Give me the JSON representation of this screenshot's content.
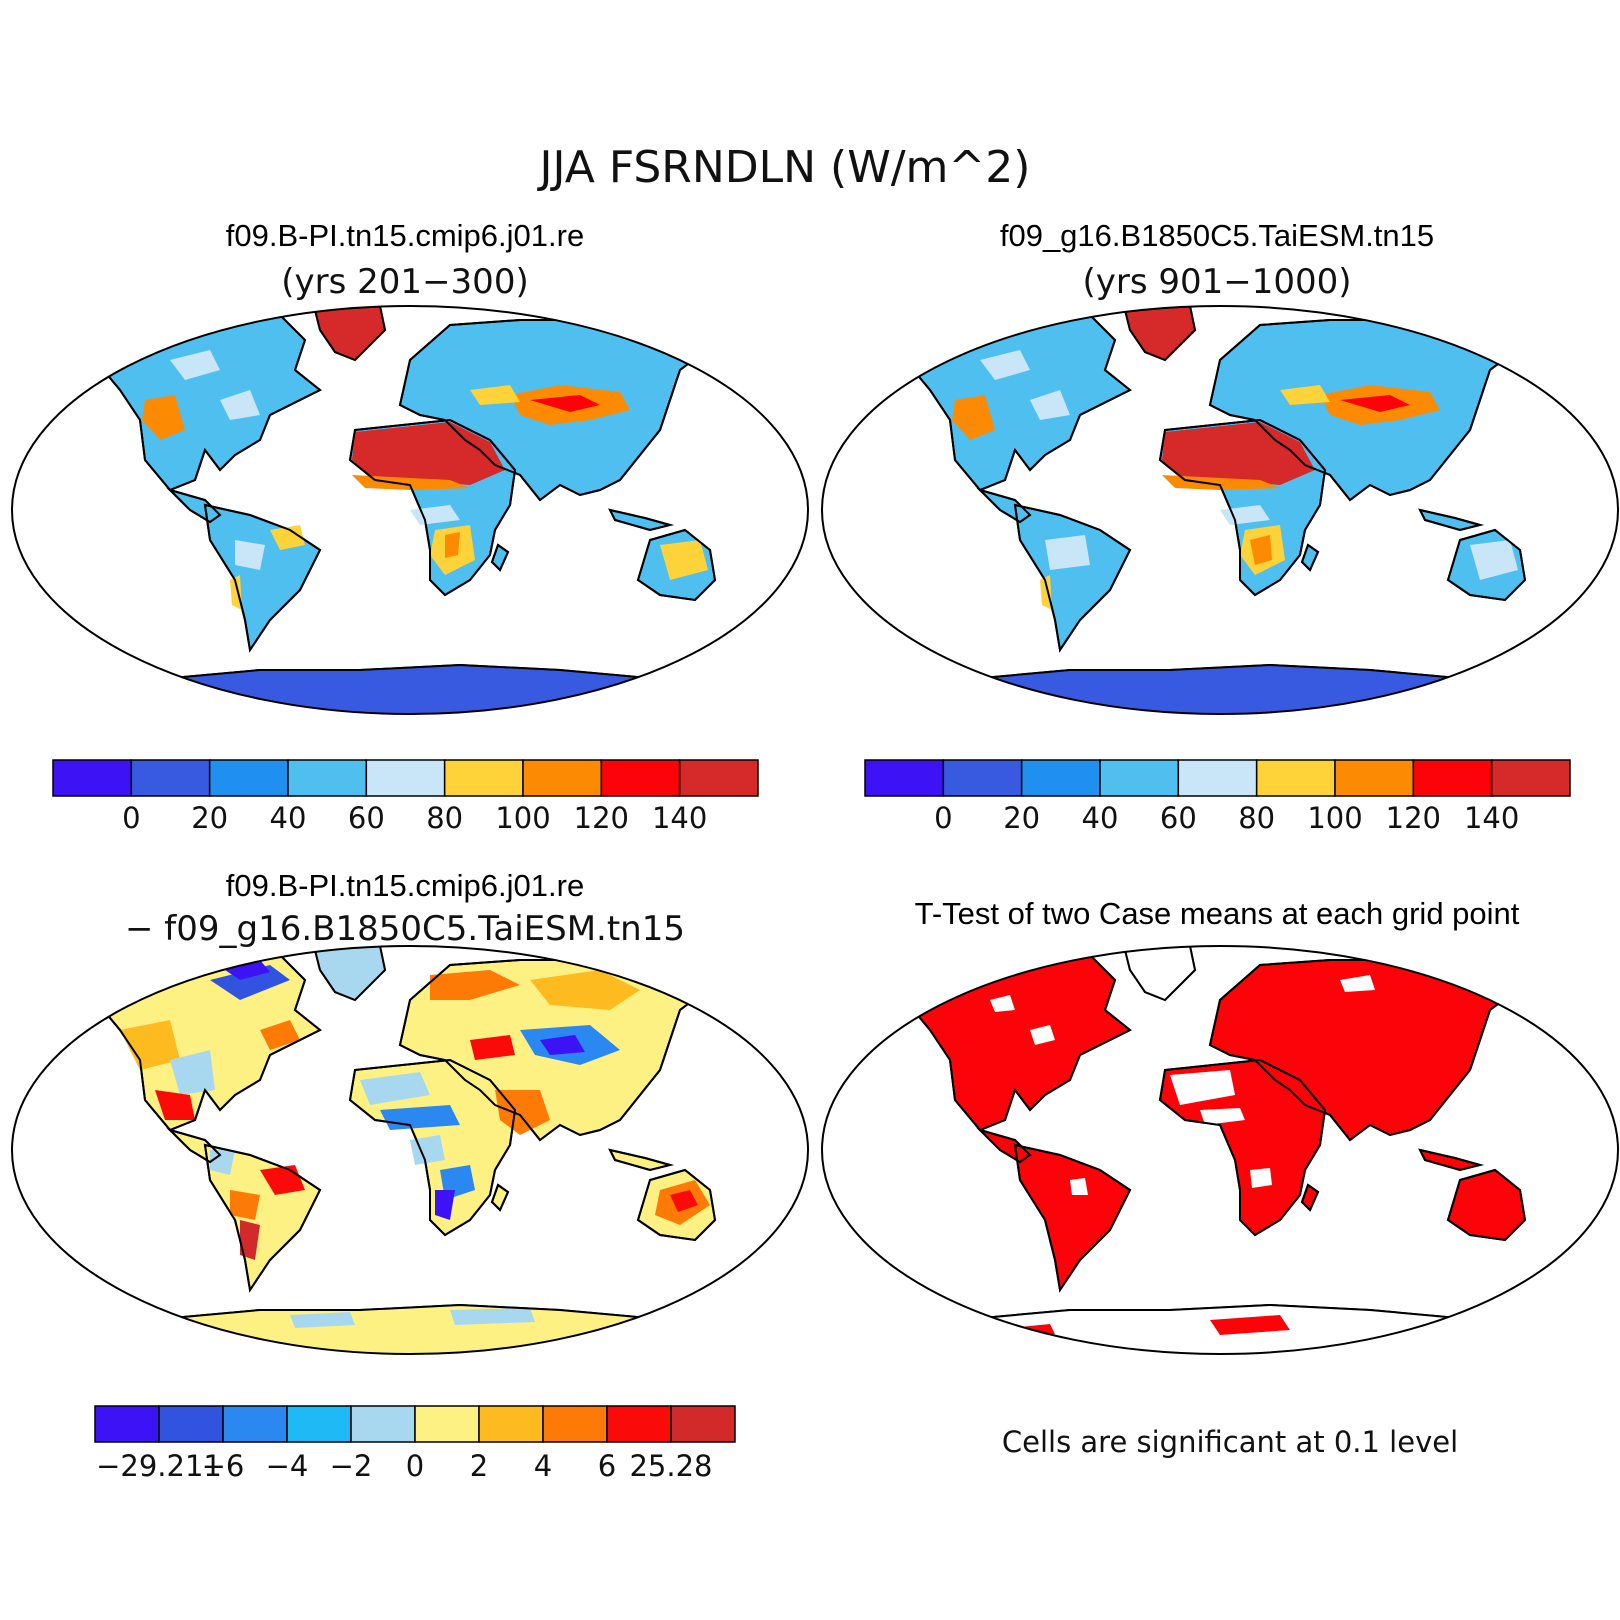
{
  "figure": {
    "title": "JJA FSRNDLN (W/m^2)"
  },
  "panels": [
    {
      "id": "case1",
      "title": "f09.B-PI.tn15.cmip6.j01.re",
      "subtitle": "(yrs 201−300)",
      "colorbar": {
        "colors": [
          "#3d13f5",
          "#385ae0",
          "#1f8ff0",
          "#4fbff0",
          "#c8e6f7",
          "#fdd339",
          "#fd8a03",
          "#fb0308",
          "#d62a2a"
        ],
        "labels": [
          "0",
          "20",
          "40",
          "60",
          "80",
          "100",
          "120",
          "140"
        ]
      }
    },
    {
      "id": "case2",
      "title": "f09_g16.B1850C5.TaiESM.tn15",
      "subtitle": "(yrs 901−1000)",
      "colorbar": {
        "colors": [
          "#3d13f5",
          "#385ae0",
          "#1f8ff0",
          "#4fbff0",
          "#c8e6f7",
          "#fdd339",
          "#fd8a03",
          "#fb0308",
          "#d62a2a"
        ],
        "labels": [
          "0",
          "20",
          "40",
          "60",
          "80",
          "100",
          "120",
          "140"
        ]
      }
    },
    {
      "id": "diff",
      "title": "f09.B-PI.tn15.cmip6.j01.re",
      "subtitle": "− f09_g16.B1850C5.TaiESM.tn15",
      "colorbar": {
        "colors": [
          "#3d13f5",
          "#3252e0",
          "#2a88f0",
          "#1dbaf5",
          "#a8d8f0",
          "#fef184",
          "#fdbb1f",
          "#fd7a06",
          "#fb0a0a",
          "#d22a2a"
        ],
        "labels": [
          "−29.211",
          "−6",
          "−4",
          "−2",
          "0",
          "2",
          "4",
          "6",
          "25.28"
        ]
      }
    },
    {
      "id": "ttest",
      "title": "T-Test of two Case means at each grid point",
      "note": "Cells are significant at 0.1 level"
    }
  ]
}
